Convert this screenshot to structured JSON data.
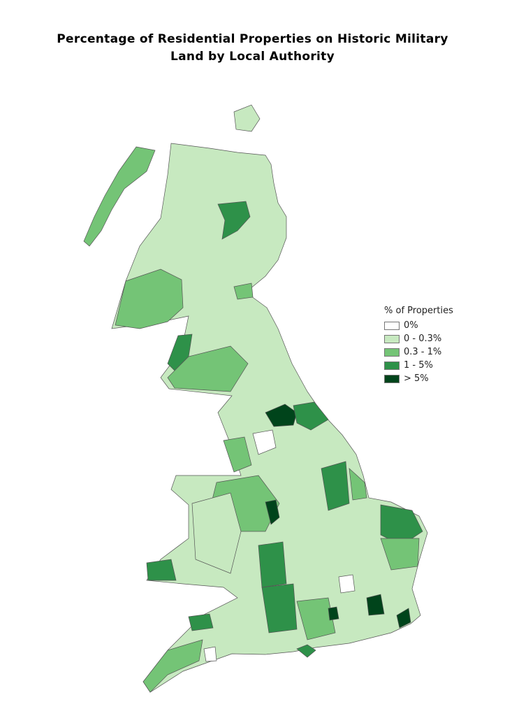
{
  "title_line1": "Percentage of Residential Properties on Historic Military",
  "title_line2": "Land by Local Authority",
  "legend": {
    "title": "% of Properties",
    "classes": [
      {
        "label": "0%",
        "color": "#ffffff"
      },
      {
        "label": "0 - 0.3%",
        "color": "#c7e9c0"
      },
      {
        "label": "0.3 - 1%",
        "color": "#74c476"
      },
      {
        "label": "1 - 5%",
        "color": "#2e9149"
      },
      {
        "label": "> 5%",
        "color": "#00441b"
      }
    ]
  },
  "map": {
    "border_color": "#555555"
  }
}
